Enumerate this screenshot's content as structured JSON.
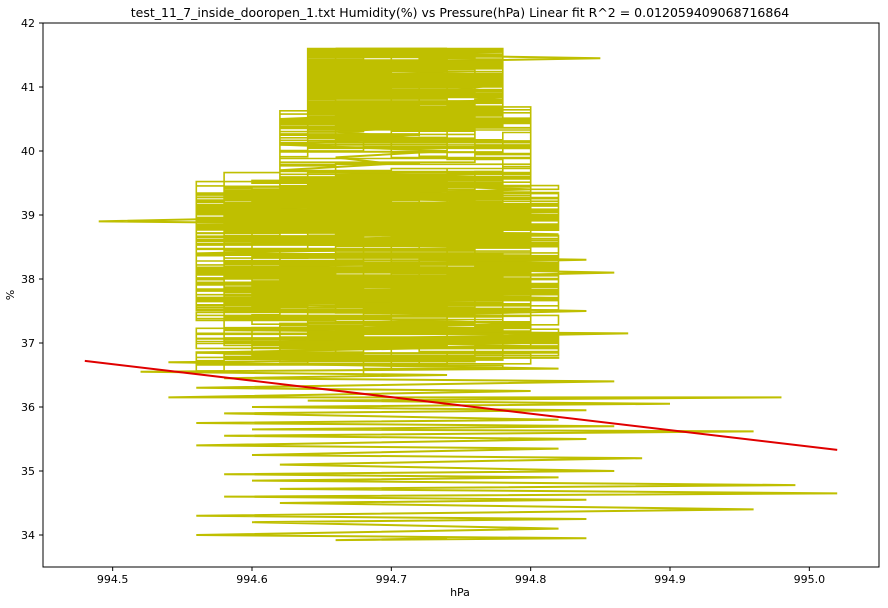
{
  "chart_data": {
    "type": "line",
    "title": "test_11_7_inside_dooropen_1.txt    Humidity(%) vs Pressure(hPa)    Linear fit    R^2 = 0.012059409068716864",
    "xlabel": "hPa",
    "ylabel": "%",
    "xlim": [
      994.45,
      995.05
    ],
    "ylim": [
      33.5,
      42.0
    ],
    "x_ticks": [
      994.5,
      994.6,
      994.7,
      994.8,
      994.9,
      995.0
    ],
    "x_tick_labels": [
      "994.5",
      "994.6",
      "994.7",
      "994.8",
      "994.9",
      "995.0"
    ],
    "y_ticks": [
      34,
      35,
      36,
      37,
      38,
      39,
      40,
      41,
      42
    ],
    "y_tick_labels": [
      "34",
      "35",
      "36",
      "37",
      "38",
      "39",
      "40",
      "41",
      "42"
    ],
    "grid": false,
    "series": [
      {
        "style": "data",
        "color": "#bfbf00",
        "x_min": 994.48,
        "x_max": 995.02,
        "y_min": 33.9,
        "y_max": 41.6,
        "points": [
          [
            994.74,
            41.6
          ],
          [
            994.66,
            41.6
          ],
          [
            994.78,
            41.55
          ],
          [
            994.7,
            41.5
          ],
          [
            994.85,
            41.45
          ],
          [
            994.72,
            41.4
          ],
          [
            994.64,
            41.3
          ],
          [
            994.76,
            41.2
          ],
          [
            994.7,
            41.1
          ],
          [
            994.78,
            41.05
          ],
          [
            994.73,
            40.9
          ],
          [
            994.78,
            40.8
          ],
          [
            994.66,
            40.7
          ],
          [
            994.74,
            40.6
          ],
          [
            994.62,
            40.5
          ],
          [
            994.74,
            40.4
          ],
          [
            994.66,
            40.3
          ],
          [
            994.72,
            40.2
          ],
          [
            994.62,
            40.1
          ],
          [
            994.74,
            40.0
          ],
          [
            994.66,
            39.9
          ],
          [
            994.7,
            39.8
          ],
          [
            994.62,
            39.7
          ],
          [
            994.76,
            39.6
          ],
          [
            994.66,
            39.5
          ],
          [
            994.8,
            39.4
          ],
          [
            994.64,
            39.3
          ],
          [
            994.78,
            39.2
          ],
          [
            994.56,
            39.1
          ],
          [
            994.82,
            39.05
          ],
          [
            994.49,
            38.9
          ],
          [
            994.74,
            38.85
          ],
          [
            994.58,
            38.8
          ],
          [
            994.82,
            38.7
          ],
          [
            994.6,
            38.6
          ],
          [
            994.78,
            38.5
          ],
          [
            994.56,
            38.4
          ],
          [
            994.84,
            38.3
          ],
          [
            994.62,
            38.2
          ],
          [
            994.86,
            38.1
          ],
          [
            994.66,
            38.0
          ],
          [
            994.8,
            37.9
          ],
          [
            994.64,
            37.8
          ],
          [
            994.82,
            37.7
          ],
          [
            994.6,
            37.6
          ],
          [
            994.84,
            37.5
          ],
          [
            994.64,
            37.4
          ],
          [
            994.8,
            37.3
          ],
          [
            994.58,
            37.2
          ],
          [
            994.87,
            37.15
          ],
          [
            994.62,
            37.05
          ],
          [
            994.8,
            36.95
          ],
          [
            994.56,
            36.85
          ],
          [
            994.78,
            36.75
          ],
          [
            994.54,
            36.7
          ],
          [
            994.82,
            36.6
          ],
          [
            994.52,
            36.55
          ],
          [
            994.74,
            36.5
          ],
          [
            994.58,
            36.45
          ],
          [
            994.86,
            36.4
          ],
          [
            994.56,
            36.3
          ],
          [
            994.8,
            36.25
          ],
          [
            994.54,
            36.15
          ],
          [
            994.98,
            36.15
          ],
          [
            994.64,
            36.1
          ],
          [
            994.9,
            36.05
          ],
          [
            994.6,
            36.0
          ],
          [
            994.84,
            35.95
          ],
          [
            994.58,
            35.9
          ],
          [
            994.82,
            35.8
          ],
          [
            994.56,
            35.75
          ],
          [
            994.86,
            35.7
          ],
          [
            994.6,
            35.65
          ],
          [
            994.96,
            35.62
          ],
          [
            994.58,
            35.55
          ],
          [
            994.84,
            35.5
          ],
          [
            994.56,
            35.4
          ],
          [
            994.82,
            35.35
          ],
          [
            994.6,
            35.25
          ],
          [
            994.88,
            35.2
          ],
          [
            994.62,
            35.1
          ],
          [
            994.86,
            35.0
          ],
          [
            994.58,
            34.95
          ],
          [
            994.82,
            34.9
          ],
          [
            994.6,
            34.85
          ],
          [
            994.99,
            34.78
          ],
          [
            994.62,
            34.72
          ],
          [
            995.02,
            34.65
          ],
          [
            994.58,
            34.6
          ],
          [
            994.84,
            34.55
          ],
          [
            994.62,
            34.5
          ],
          [
            994.96,
            34.4
          ],
          [
            994.56,
            34.3
          ],
          [
            994.84,
            34.25
          ],
          [
            994.6,
            34.2
          ],
          [
            994.82,
            34.1
          ],
          [
            994.56,
            34.0
          ],
          [
            994.84,
            33.95
          ],
          [
            994.66,
            33.92
          ],
          [
            994.74,
            33.95
          ]
        ]
      },
      {
        "style": "fit",
        "color": "#e00000",
        "x": [
          994.48,
          995.02
        ],
        "y": [
          36.72,
          35.33
        ]
      }
    ]
  }
}
